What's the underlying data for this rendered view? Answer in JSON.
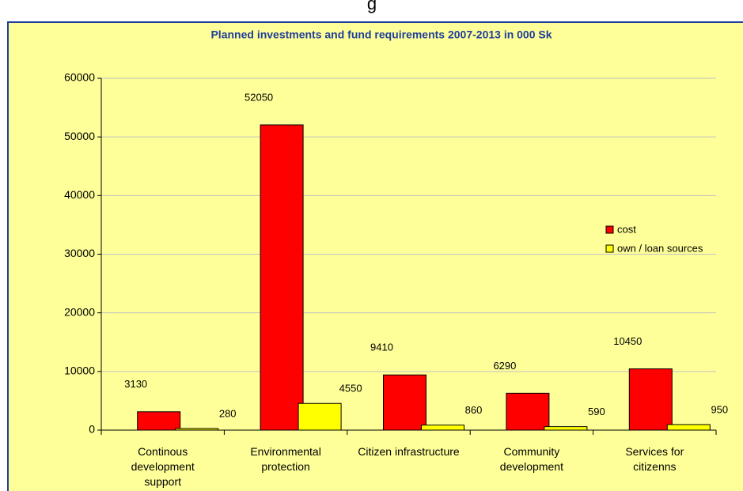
{
  "page_text": "g",
  "chart_data": {
    "type": "bar",
    "title": "Planned investments and fund requirements 2007-2013 in 000 Sk",
    "categories": [
      "Continous development support",
      "Environmental protection",
      "Citizen infrastructure",
      "Community development",
      "Services for citizenns"
    ],
    "series": [
      {
        "name": "cost",
        "color": "#ff0000",
        "values": [
          3130,
          52050,
          9410,
          6290,
          10450
        ]
      },
      {
        "name": "own / loan sources",
        "color": "#ffff00",
        "values": [
          280,
          4550,
          860,
          590,
          950
        ]
      }
    ],
    "ylim": [
      0,
      60000
    ],
    "yticks": [
      0,
      10000,
      20000,
      30000,
      40000,
      50000,
      60000
    ],
    "grid": true,
    "legend": "right"
  }
}
